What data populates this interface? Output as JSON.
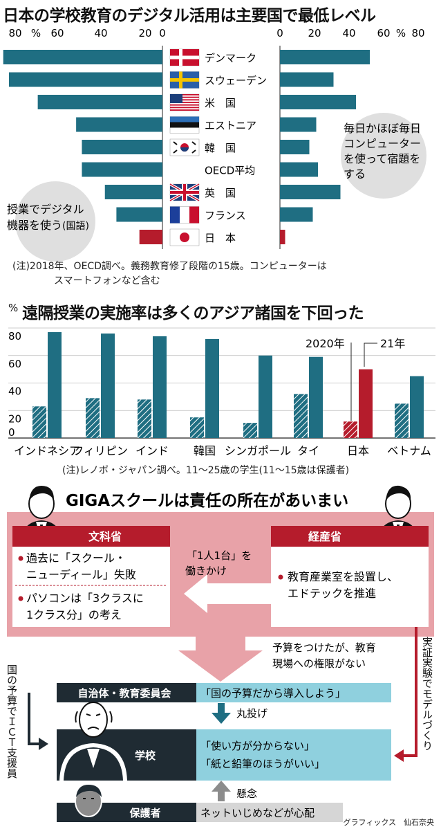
{
  "chart_data": [
    {
      "type": "bar",
      "title": "日本の学校教育のデジタル活用は主要国で最低レベル",
      "left_axis": {
        "ticks": [
          "80",
          "%",
          "60",
          "40",
          "20",
          "0"
        ]
      },
      "right_axis": {
        "ticks": [
          "0",
          "20",
          "40",
          "60",
          "%",
          "80"
        ]
      },
      "categories": [
        "デンマーク",
        "スウェーデン",
        "米　国",
        "エストニア",
        "韓　国",
        "OECD平均",
        "英　国",
        "フランス",
        "日　本"
      ],
      "series": [
        {
          "name": "授業でデジタル機器を使う(国語)",
          "values": [
            83,
            80,
            65,
            45,
            42,
            42,
            30,
            24,
            12
          ]
        },
        {
          "name": "毎日かほぼ毎日コンピューターを使って宿題をする",
          "values": [
            52,
            31,
            44,
            21,
            17,
            22,
            35,
            19,
            3
          ]
        }
      ],
      "left_label": {
        "line1": "授業でデジタル",
        "line2": "機器を使う",
        "suffix": "(国語)"
      },
      "right_label": {
        "line1": "毎日かほぼ毎日",
        "line2": "コンピューター",
        "line3": "を使って宿題を",
        "line4": "する"
      },
      "note": {
        "line1": "(注)2018年、OECD調べ。義務教育修了段階の15歳。コンピューターは",
        "line2": "スマートフォンなど含む"
      }
    },
    {
      "type": "bar",
      "title": "遠隔授業の実施率は多くのアジア諸国を下回った",
      "ylabel": "%",
      "yticks": [
        "80",
        "60",
        "40",
        "20",
        "0"
      ],
      "ylim": [
        0,
        80
      ],
      "categories": [
        "インドネシア",
        "フィリピン",
        "インド",
        "韓国",
        "シンガポール",
        "タイ",
        "日本",
        "ベトナム"
      ],
      "series": [
        {
          "name": "2020年",
          "values": [
            23,
            29,
            28,
            15,
            11,
            32,
            12,
            25
          ]
        },
        {
          "name": "21年",
          "values": [
            77,
            76,
            74,
            72,
            60,
            59,
            50,
            45
          ]
        }
      ],
      "note": "(注)レノボ・ジャパン調べ。11～25歳の学生(11～15歳は保護者)"
    }
  ],
  "colors": {
    "teal": "#1f6e82",
    "red": "#b51c2c",
    "pink": "#e8a2a8",
    "light_blue": "#8fd0de",
    "dark": "#1f2b33",
    "gray": "#d6d6d6",
    "arrow_gray": "#8c8c8c"
  },
  "diagram": {
    "title": "GIGAスクールは責任の所在があいまい",
    "monkasho": {
      "header": "文科省",
      "item1_line1": "過去に「スクール・",
      "item1_line2": "ニューディール」失敗",
      "item2_line1": "パソコンは「3クラスに",
      "item2_line2": "1クラス分」の考え"
    },
    "keisansho": {
      "header": "経産省",
      "item1_line1": "教育産業室を設置し、",
      "item1_line2": "エドテックを推進"
    },
    "hataraki_line1": "「1人1台」を",
    "hataraki_line2": "働きかけ",
    "yosan_line1": "予算をつけたが、教育",
    "yosan_line2": "現場への権限がない",
    "left_vertical": "国の予算でＩＣＴ支援員",
    "right_vertical": "実証実験でモデルづくり",
    "jichitai": {
      "label": "自治体・教育委員会",
      "quote": "「国の予算だから導入しよう」"
    },
    "marunage": "丸投げ",
    "gakko": {
      "label": "学校",
      "quote1": "「使い方が分からない」",
      "quote2": "「紙と鉛筆のほうがいい」"
    },
    "kenen": "懸念",
    "hogosha": {
      "label": "保護者",
      "quote": "ネットいじめなどが心配"
    }
  },
  "credit": "グラフィックス　仙石奈央"
}
